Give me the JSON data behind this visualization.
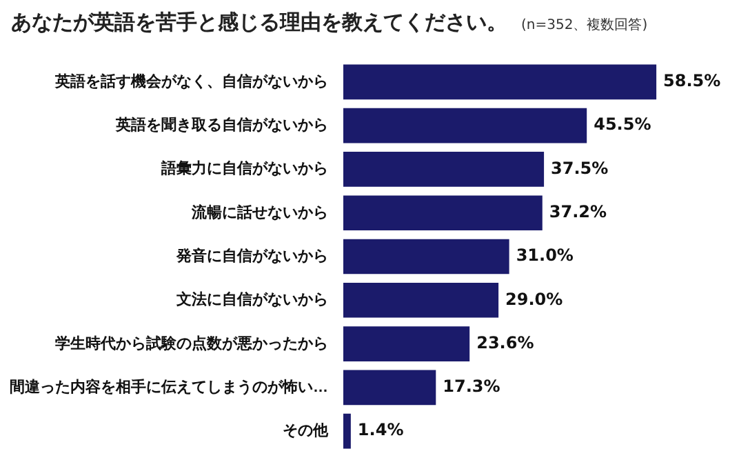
{
  "chart_data": {
    "type": "bar",
    "orientation": "horizontal",
    "title": "あなたが英語を苦手と感じる理由を教えてください。",
    "subtitle": "(n=352、複数回答)",
    "categories": [
      "英語を話す機会がなく、自信がないから",
      "英語を聞き取る自信がないから",
      "語彙力に自信がないから",
      "流暢に話せないから",
      "発音に自信がないから",
      "文法に自信がないから",
      "学生時代から試験の点数が悪かったから",
      "間違った内容を相手に伝えてしまうのが怖い…",
      "その他"
    ],
    "values": [
      58.5,
      45.5,
      37.5,
      37.2,
      31.0,
      29.0,
      23.6,
      17.3,
      1.4
    ],
    "value_labels": [
      "58.5%",
      "45.5%",
      "37.5%",
      "37.2%",
      "31.0%",
      "29.0%",
      "23.6%",
      "17.3%",
      "1.4%"
    ],
    "color": "#1b1b6b"
  }
}
